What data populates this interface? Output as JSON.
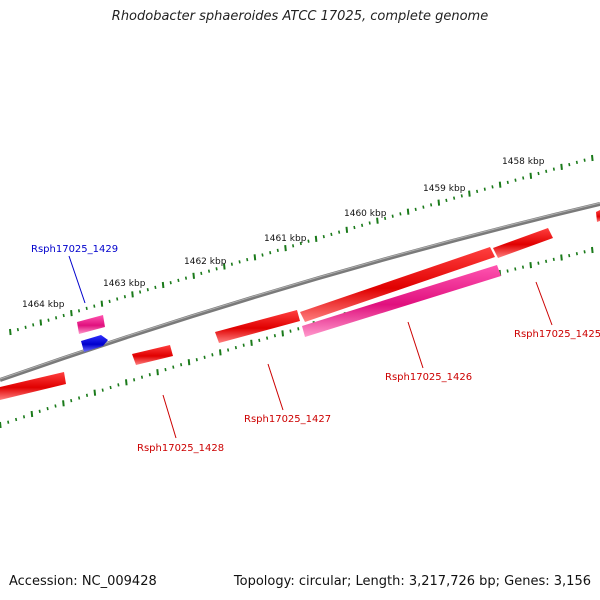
{
  "title": "Rhodobacter sphaeroides ATCC 17025, complete genome",
  "footer": {
    "accession": "Accession: NC_009428",
    "summary": "Topology: circular; Length: 3,217,726 bp; Genes: 3,156"
  },
  "colors": {
    "backbone": "#808080",
    "tick": "#1a7a1a",
    "gene_red": "#ff0000",
    "gene_pink": "#ff1493",
    "gene_blue": "#0000ee",
    "label_red": "#cc0000",
    "label_blue": "#0000cc"
  },
  "ticks": [
    {
      "label": "1458 kbp"
    },
    {
      "label": "1459 kbp"
    },
    {
      "label": "1460 kbp"
    },
    {
      "label": "1461 kbp"
    },
    {
      "label": "1462 kbp"
    },
    {
      "label": "1463 kbp"
    },
    {
      "label": "1464 kbp"
    }
  ],
  "genes": [
    {
      "label": "Rsph17025_1425"
    },
    {
      "label": "Rsph17025_1426"
    },
    {
      "label": "Rsph17025_1427"
    },
    {
      "label": "Rsph17025_1428"
    },
    {
      "label": "Rsph17025_1429"
    }
  ]
}
